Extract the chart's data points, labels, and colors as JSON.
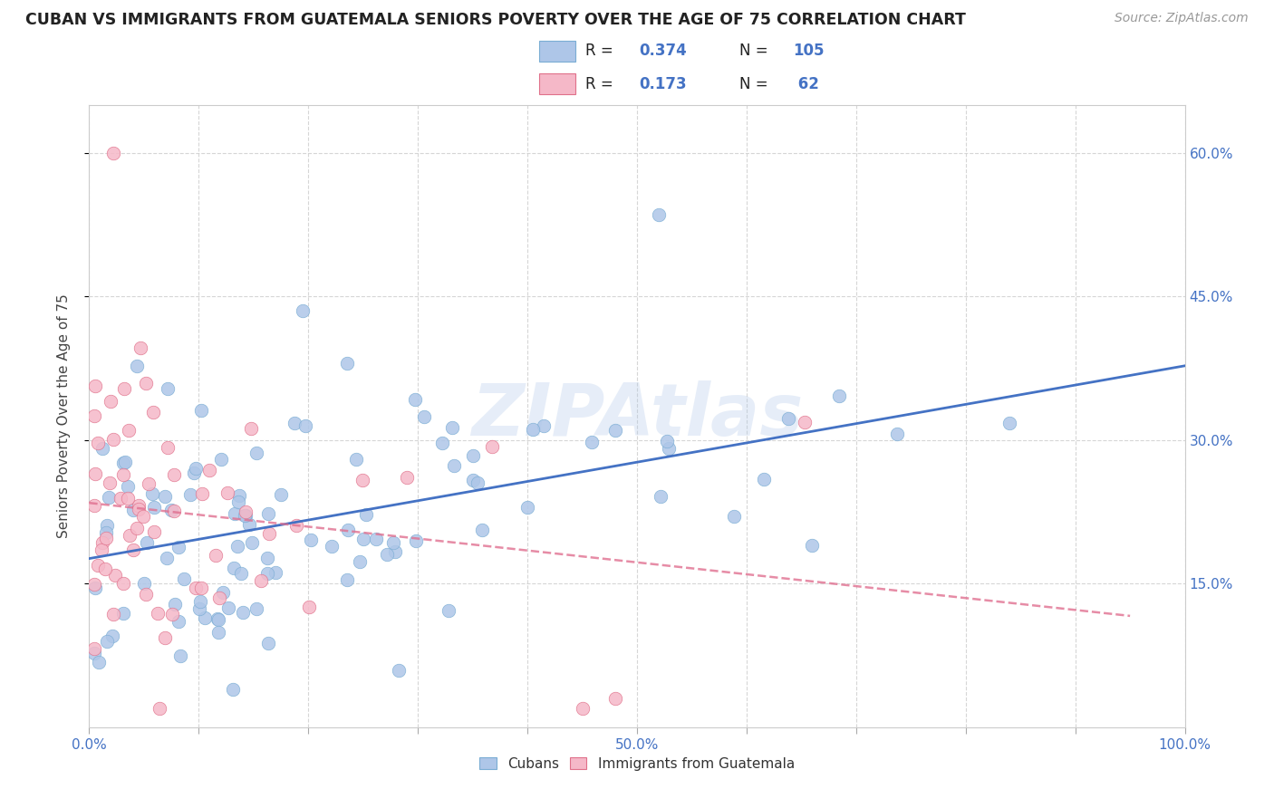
{
  "title": "CUBAN VS IMMIGRANTS FROM GUATEMALA SENIORS POVERTY OVER THE AGE OF 75 CORRELATION CHART",
  "source": "Source: ZipAtlas.com",
  "ylabel": "Seniors Poverty Over the Age of 75",
  "xlim": [
    0.0,
    1.0
  ],
  "ylim": [
    0.0,
    0.65
  ],
  "xticks": [
    0.0,
    0.1,
    0.2,
    0.3,
    0.4,
    0.5,
    0.6,
    0.7,
    0.8,
    0.9,
    1.0
  ],
  "xtick_labels_sparse": {
    "0.0": "0.0%",
    "0.5": "50.0%",
    "1.0": "100.0%"
  },
  "ytick_labels": [
    "15.0%",
    "30.0%",
    "45.0%",
    "60.0%"
  ],
  "yticks": [
    0.15,
    0.3,
    0.45,
    0.6
  ],
  "background_color": "#ffffff",
  "grid_color": "#cccccc",
  "cuban_color": "#aec6e8",
  "cuban_edge_color": "#7aadd4",
  "guatemala_color": "#f5b8c8",
  "guatemala_edge_color": "#e0708a",
  "cuban_R": "0.374",
  "cuban_N": "105",
  "guatemala_R": "0.173",
  "guatemala_N": "62",
  "legend_text_color": "#4472c4",
  "cuban_line_color": "#4472c4",
  "guatemala_line_color": "#e07090",
  "watermark": "ZIPAtlas",
  "watermark_color": "#aec6e8"
}
